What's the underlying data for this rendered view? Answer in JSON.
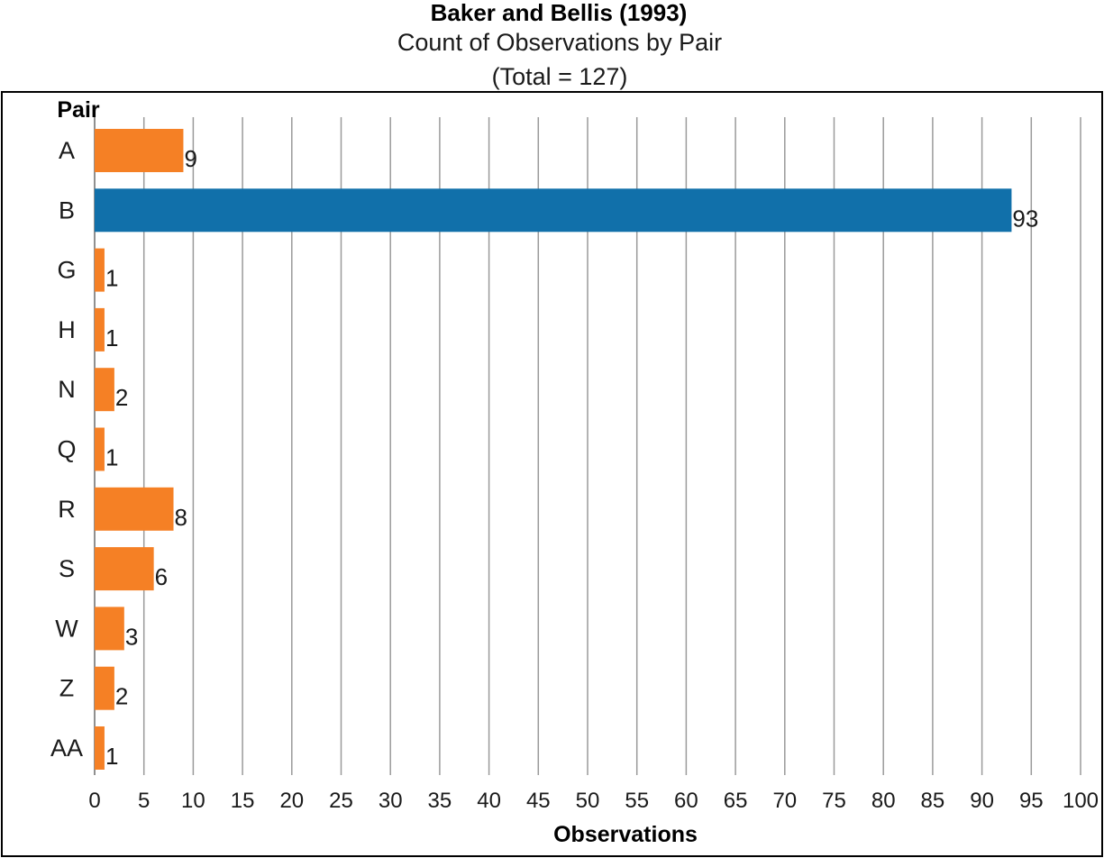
{
  "chart_data": {
    "type": "bar",
    "orientation": "horizontal",
    "title": "Baker and Bellis (1993)",
    "subtitle_lines": [
      "Count of Observations by Pair",
      "(Total = 127)"
    ],
    "ylabel": "Pair",
    "xlabel": "Observations",
    "categories": [
      "A",
      "B",
      "G",
      "H",
      "N",
      "Q",
      "R",
      "S",
      "W",
      "Z",
      "AA"
    ],
    "values": [
      9,
      93,
      1,
      1,
      2,
      1,
      8,
      6,
      3,
      2,
      1
    ],
    "highlight_category": "B",
    "colors": {
      "default": "#f58025",
      "highlight": "#1170aa",
      "grid": "#9a9a9a",
      "frame": "#000000"
    },
    "xlim": [
      0,
      100
    ],
    "xticks": [
      0,
      5,
      10,
      15,
      20,
      25,
      30,
      35,
      40,
      45,
      50,
      55,
      60,
      65,
      70,
      75,
      80,
      85,
      90,
      95,
      100
    ],
    "grid": "vertical",
    "legend": "none"
  }
}
